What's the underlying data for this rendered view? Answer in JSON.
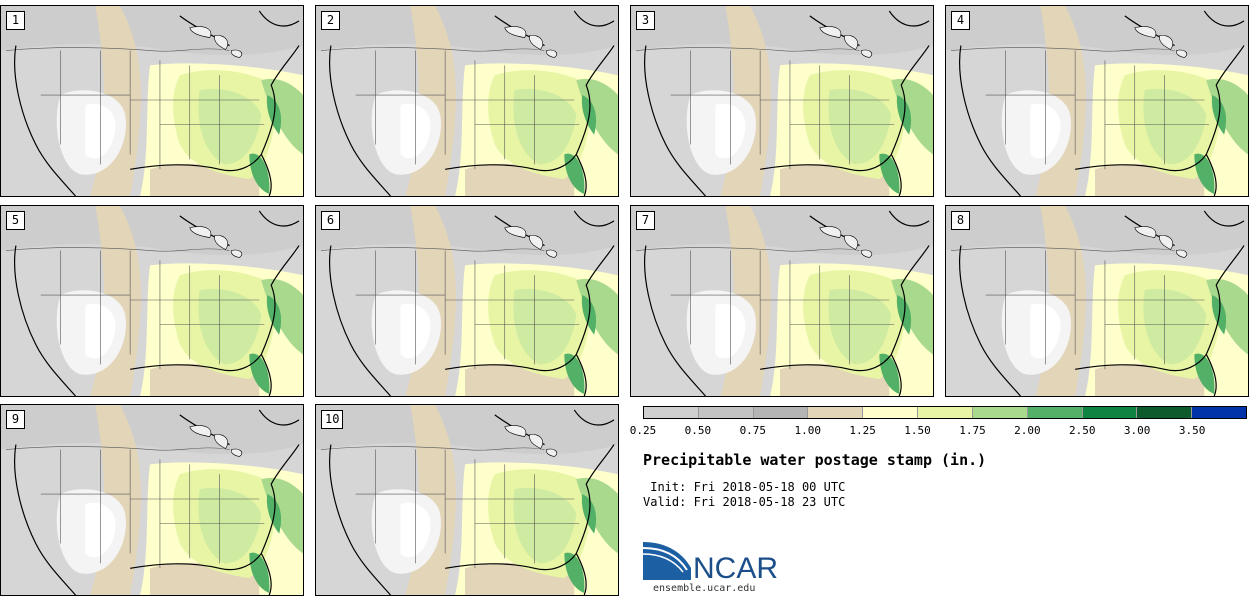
{
  "stamps": [
    "1",
    "2",
    "3",
    "4",
    "5",
    "6",
    "7",
    "8",
    "9",
    "10"
  ],
  "colorbar": {
    "colors": [
      "#d0d0d0",
      "#c3c3c3",
      "#b4b4b4",
      "#e3d5b8",
      "#ffffcc",
      "#e7f5a5",
      "#a9d98c",
      "#52b166",
      "#0f8440",
      "#0d5a2c",
      "#0033aa"
    ],
    "ticks": [
      "0.25",
      "0.50",
      "0.75",
      "1.00",
      "1.25",
      "1.50",
      "1.75",
      "2.00",
      "2.50",
      "3.00",
      "3.50"
    ]
  },
  "title": "Precipitable water postage stamp (in.)",
  "init": " Init: Fri 2018-05-18 00 UTC",
  "valid": "Valid: Fri 2018-05-18 23 UTC",
  "logo": {
    "text": "NCAR",
    "url": "ensemble.ucar.edu"
  }
}
